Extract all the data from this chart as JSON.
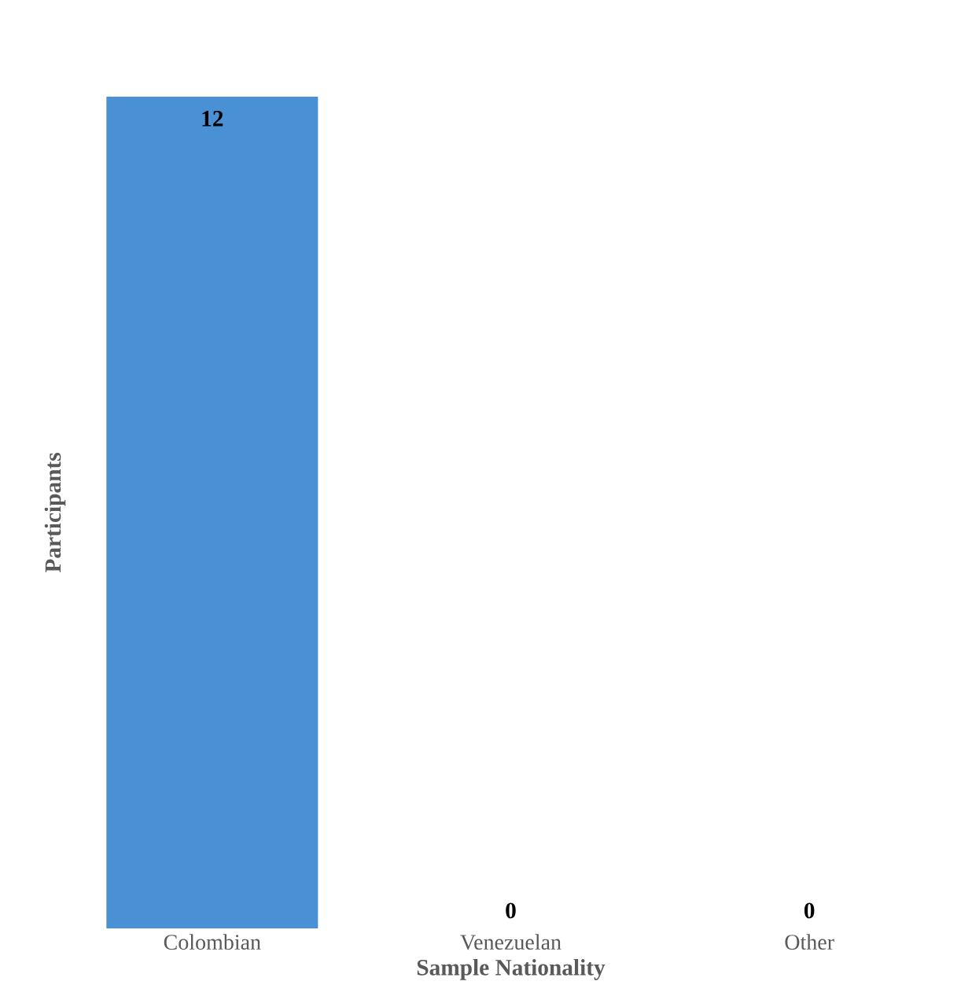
{
  "chart_data": {
    "type": "bar",
    "xlabel": "Sample Nationality",
    "ylabel": "Participants",
    "categories": [
      "Colombian",
      "Venezuelan",
      "Other"
    ],
    "values": [
      12,
      0,
      0
    ],
    "color": "#4a90d4",
    "data_labels": true
  }
}
